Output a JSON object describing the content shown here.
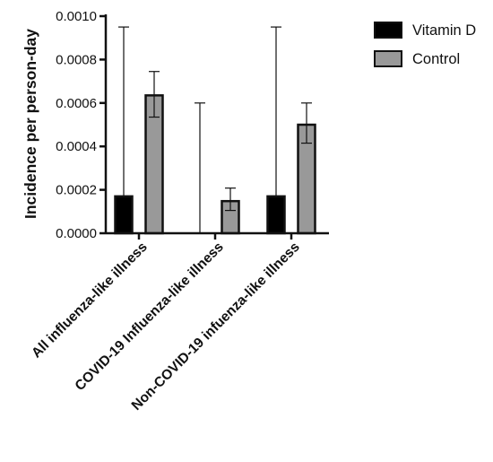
{
  "chart_data": {
    "type": "bar",
    "ylabel": "Incidence per person-day",
    "xlabel": "",
    "ylim": [
      0,
      0.001
    ],
    "y_ticks": [
      "0.0000",
      "0.0002",
      "0.0004",
      "0.0006",
      "0.0008",
      "0.0010"
    ],
    "categories": [
      "All influenza-like illness",
      "COVID-19 Influenza-like illness",
      "Non-COVID-19 infuenza-like illness"
    ],
    "series": [
      {
        "name": "Vitamin D",
        "color": "#000000",
        "values": [
          0.00017,
          0.0,
          0.00017
        ],
        "error_high": [
          0.00095,
          0.0006,
          0.00095
        ],
        "error_low": [
          0.00017,
          0.0,
          0.00017
        ]
      },
      {
        "name": "Control",
        "color": "#999999",
        "values": [
          0.000635,
          0.000148,
          0.0005
        ],
        "error_high": [
          0.000745,
          0.000208,
          0.0006
        ],
        "error_low": [
          0.000535,
          0.000105,
          0.000415
        ]
      }
    ],
    "legend_position": "top-right",
    "grid": false
  }
}
